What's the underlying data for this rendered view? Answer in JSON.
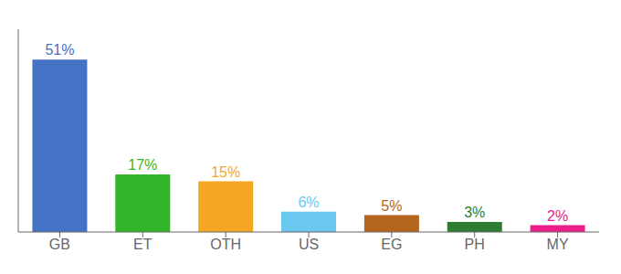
{
  "chart_data": {
    "type": "bar",
    "categories": [
      "GB",
      "ET",
      "OTH",
      "US",
      "EG",
      "PH",
      "MY"
    ],
    "values": [
      51,
      17,
      15,
      6,
      5,
      3,
      2
    ],
    "value_labels": [
      "51%",
      "17%",
      "15%",
      "6%",
      "5%",
      "3%",
      "2%"
    ],
    "colors": [
      "#4472C4",
      "#33B52A",
      "#F5A623",
      "#6BC8EE",
      "#B5651D",
      "#2E7D32",
      "#E91E8C"
    ],
    "ylim": [
      0,
      60
    ],
    "data_labels": true,
    "tick_labels": "x",
    "grid": false
  }
}
